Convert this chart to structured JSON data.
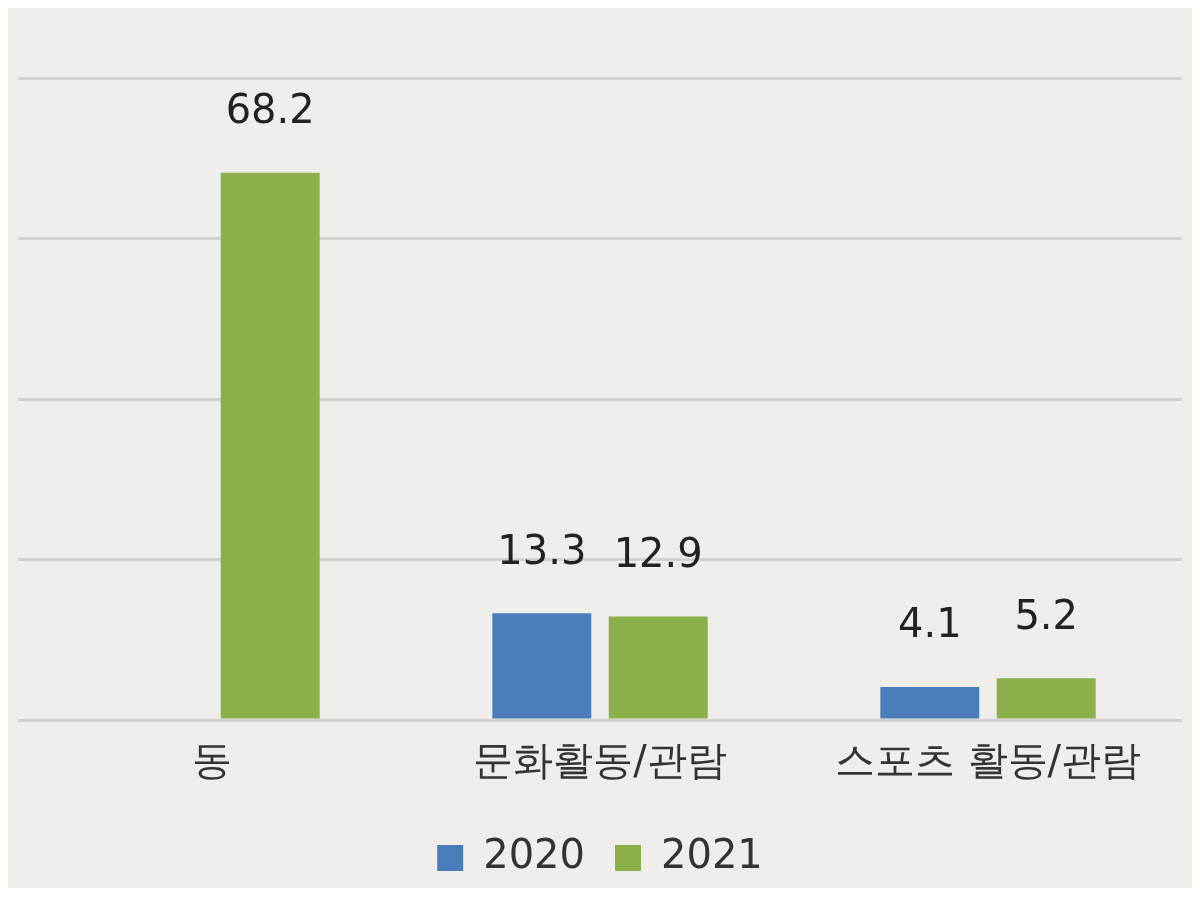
{
  "chart_data": {
    "type": "bar",
    "categories": [
      "동",
      "문화활동/관람",
      "스포츠 활동/관람"
    ],
    "series": [
      {
        "name": "2020",
        "color": "#4a7ebb",
        "values": [
          null,
          13.3,
          4.1
        ]
      },
      {
        "name": "2021",
        "color": "#8cb04c",
        "values": [
          68.2,
          12.9,
          5.2
        ]
      }
    ],
    "ylim": [
      0,
      80
    ],
    "yticks": [
      {
        "value": 0,
        "label": null
      },
      {
        "value": 20,
        "label": null
      },
      {
        "value": 40,
        "label": null
      },
      {
        "value": 60,
        "label": null
      },
      {
        "value": 80,
        "label": null
      }
    ],
    "tick_labels": "x",
    "grid": "y",
    "legend": "bottom",
    "data_labels": true
  }
}
